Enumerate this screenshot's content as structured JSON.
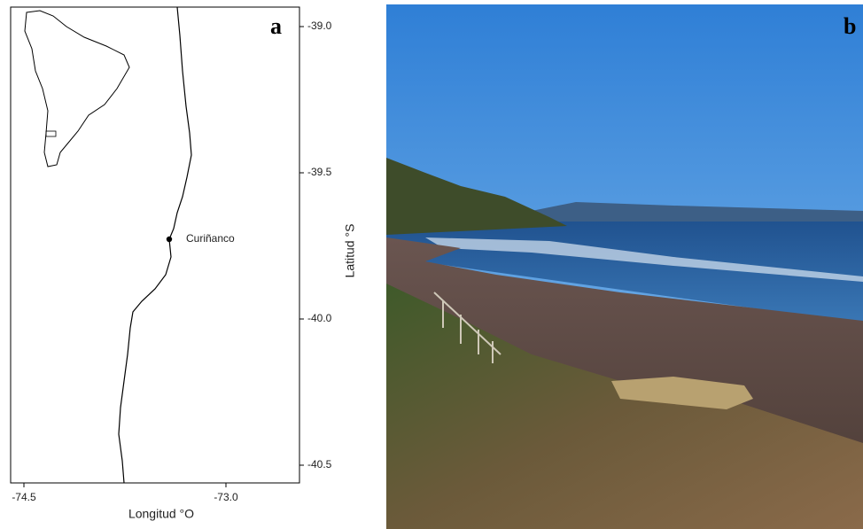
{
  "panel_a": {
    "label": "a",
    "place": "Curiñanco",
    "x_axis_label": "Longitud °O",
    "y_axis_label": "Latitud °S",
    "xticks": [
      "-74.5",
      "-73.0"
    ],
    "yticks": [
      "-39.0",
      "-39.5",
      "-40.0",
      "-40.5"
    ]
  },
  "panel_b": {
    "label": "b"
  }
}
